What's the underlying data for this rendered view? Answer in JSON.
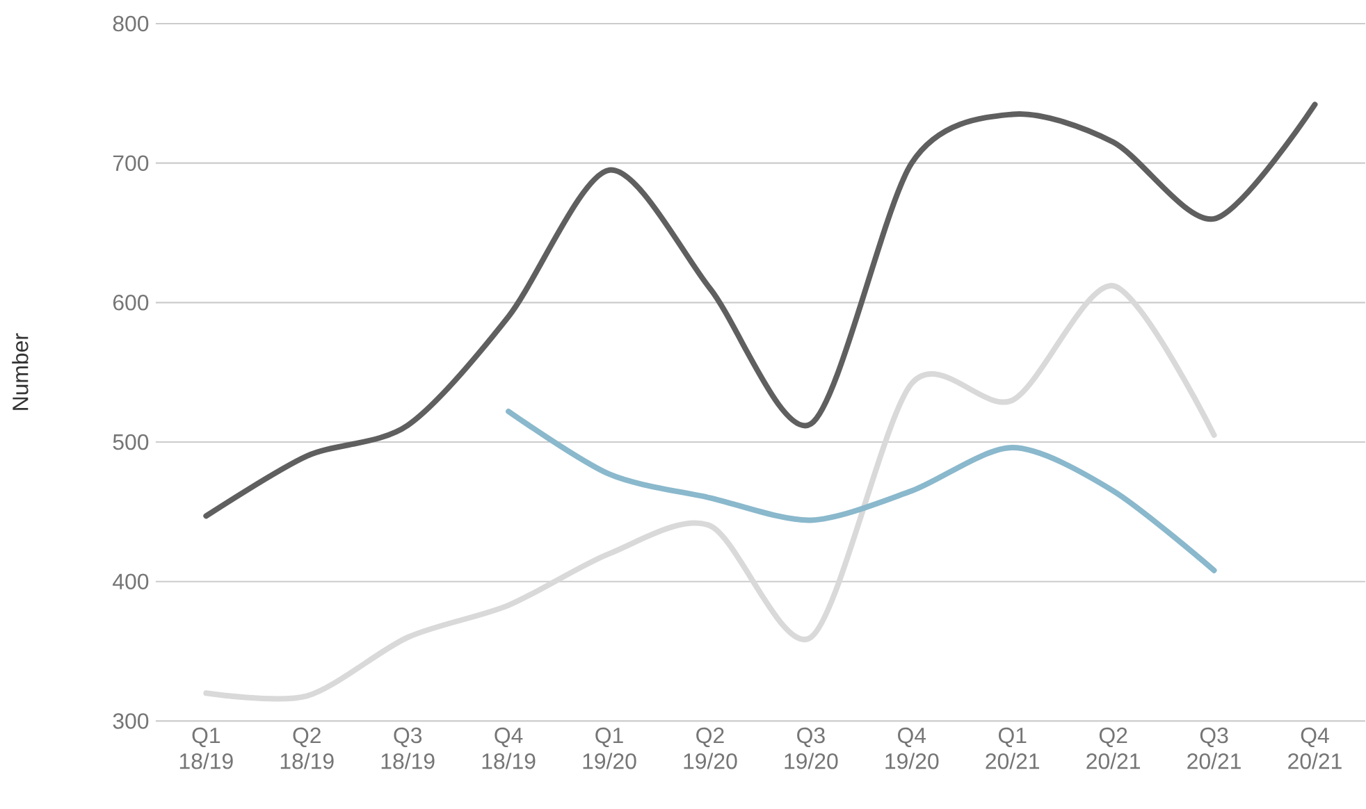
{
  "chart_data": {
    "type": "line",
    "ylabel": "Number",
    "categories": [
      "Q1 18/19",
      "Q2 18/19",
      "Q3 18/19",
      "Q4 18/19",
      "Q1 19/20",
      "Q2 19/20",
      "Q3 19/20",
      "Q4 19/20",
      "Q1 20/21",
      "Q2 20/21",
      "Q3 20/21",
      "Q4 20/21"
    ],
    "series": [
      {
        "color": "#5f5f5f",
        "values": [
          447,
          490,
          512,
          590,
          695,
          610,
          513,
          700,
          735,
          715,
          660,
          742
        ]
      },
      {
        "color": "#d9d9d9",
        "values": [
          320,
          318,
          360,
          383,
          420,
          440,
          360,
          542,
          530,
          612,
          505,
          null
        ]
      },
      {
        "color": "#8ab8cc",
        "values": [
          null,
          null,
          null,
          522,
          477,
          460,
          444,
          465,
          496,
          465,
          408,
          null
        ]
      }
    ],
    "ylim": [
      300,
      800
    ],
    "yticks": [
      300,
      400,
      500,
      600,
      700,
      800
    ],
    "grid": "y",
    "marker": "none",
    "line_style": "solid"
  }
}
